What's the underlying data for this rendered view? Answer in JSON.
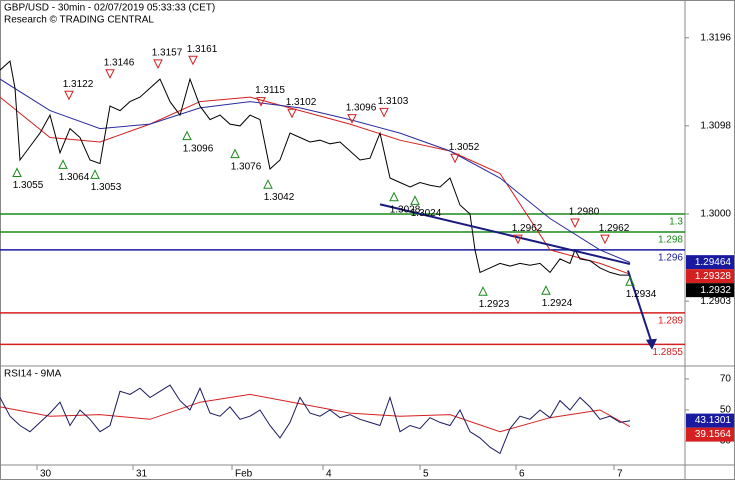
{
  "chart_data": [
    {
      "type": "price",
      "title": "GBP/USD - 30min - 02/07/2019 05:33:33 (CET)",
      "subtitle": "Research © TRADING CENTRAL",
      "xlim": [
        0,
        342.5
      ],
      "xticks": [
        {
          "value": 18.5,
          "label": "30"
        },
        {
          "value": 66.5,
          "label": "31"
        },
        {
          "value": 116,
          "label": "Feb"
        },
        {
          "value": 161.5,
          "label": "4"
        },
        {
          "value": 210,
          "label": "5"
        },
        {
          "value": 258,
          "label": "6"
        },
        {
          "value": 307,
          "label": "7"
        }
      ],
      "ylim": [
        1.2832,
        1.3238
      ],
      "yticks": [
        1.3196,
        1.3098,
        {
          "value": 1.3,
          "label": "1.3000"
        },
        1.2903
      ],
      "x": [
        0,
        5,
        7.5,
        10,
        15,
        20,
        25,
        30,
        35,
        40,
        45,
        50,
        55,
        60,
        65,
        70,
        75,
        80,
        85,
        90,
        95,
        100,
        105,
        110,
        115,
        120,
        125,
        130,
        135,
        140,
        145,
        150,
        155,
        160,
        165,
        170,
        175,
        180,
        185,
        190,
        195,
        200,
        205,
        210,
        215,
        220,
        225,
        230,
        235,
        237.5,
        240,
        245,
        250,
        255,
        260,
        265,
        270,
        275,
        280,
        285,
        287.5,
        290,
        295,
        300,
        305,
        310,
        315
      ],
      "series": [
        {
          "color": "#000000",
          "values": [
            1.316,
            1.317,
            1.314,
            1.306,
            1.3075,
            1.309,
            1.311,
            1.3068,
            1.3095,
            1.3085,
            1.306,
            1.3056,
            1.312,
            1.3115,
            1.3125,
            1.313,
            1.314,
            1.315,
            1.3125,
            1.311,
            1.315,
            1.312,
            1.3105,
            1.311,
            1.31,
            1.3098,
            1.311,
            1.3105,
            1.305,
            1.306,
            1.309,
            1.3085,
            1.308,
            1.3082,
            1.3078,
            1.308,
            1.307,
            1.306,
            1.3062,
            1.309,
            1.304,
            1.3035,
            1.303,
            1.3035,
            1.3032,
            1.303,
            1.304,
            1.301,
            1.3,
            1.296,
            1.2935,
            1.294,
            1.2945,
            1.2942,
            1.2945,
            1.2943,
            1.2945,
            1.2935,
            1.295,
            1.2945,
            1.296,
            1.295,
            1.2948,
            1.294,
            1.2935,
            1.2932,
            1.2932
          ]
        }
      ],
      "ma_x": [
        0,
        25,
        50,
        75,
        100,
        125,
        150,
        175,
        200,
        225,
        250,
        275,
        300,
        315
      ],
      "ma_series": [
        {
          "color": "#d42020",
          "values": [
            1.313,
            1.3085,
            1.308,
            1.31,
            1.3125,
            1.313,
            1.3115,
            1.31,
            1.3082,
            1.307,
            1.3045,
            1.296,
            1.2945,
            1.2933
          ]
        },
        {
          "color": "#2a2aa0",
          "values": [
            1.315,
            1.3115,
            1.3095,
            1.31,
            1.3118,
            1.3125,
            1.3118,
            1.3105,
            1.309,
            1.307,
            1.304,
            1.2995,
            1.296,
            1.2946
          ]
        }
      ],
      "levels": [
        {
          "value": 1.3,
          "color": "#1a8a1a"
        },
        {
          "value": 1.298,
          "color": "#1a8a1a"
        },
        {
          "value": 1.296,
          "color": "#1a1aa0"
        },
        {
          "value": 1.289,
          "color": "#d42020"
        },
        {
          "value": 1.2855,
          "color": "#d42020"
        }
      ],
      "trendline": {
        "x": [
          190,
          315
        ],
        "y": [
          1.30107,
          1.29443
        ],
        "color": "#1a1a80"
      },
      "arrow": {
        "x": [
          314,
          326
        ],
        "y": [
          1.2937,
          1.2849
        ],
        "color": "#1a1a80"
      },
      "annotations": [
        {
          "x": 8.5,
          "label": 1.3055,
          "dir": "up"
        },
        {
          "x": 34.5,
          "label": 1.3122,
          "dir": "down"
        },
        {
          "x": 31.5,
          "label": 1.3064,
          "dir": "up"
        },
        {
          "x": 47.5,
          "label": 1.3053,
          "dir": "up"
        },
        {
          "x": 55,
          "label": 1.3146,
          "dir": "down"
        },
        {
          "x": 79,
          "label": 1.3157,
          "dir": "down"
        },
        {
          "x": 96.5,
          "label": 1.3161,
          "dir": "down"
        },
        {
          "x": 93.5,
          "label": 1.3096,
          "dir": "up"
        },
        {
          "x": 117.5,
          "label": 1.3076,
          "dir": "up"
        },
        {
          "x": 130.5,
          "label": 1.3115,
          "dir": "down"
        },
        {
          "x": 134,
          "label": 1.3042,
          "dir": "up"
        },
        {
          "x": 146,
          "label": 1.3102,
          "dir": "down"
        },
        {
          "x": 176,
          "label": 1.3096,
          "dir": "down"
        },
        {
          "x": 192,
          "label": 1.3103,
          "dir": "down"
        },
        {
          "x": 197,
          "label": 1.3028,
          "dir": "up"
        },
        {
          "x": 207.5,
          "label": 1.3024,
          "dir": "up"
        },
        {
          "x": 227.5,
          "label": 1.3052,
          "dir": "down"
        },
        {
          "x": 241.5,
          "label": 1.2923,
          "dir": "up"
        },
        {
          "x": 259,
          "label": 1.2962,
          "dir": "down"
        },
        {
          "x": 273,
          "label": 1.2924,
          "dir": "up"
        },
        {
          "x": 287.5,
          "label": {
            "value": 1.298,
            "label": "1.2980"
          },
          "dir": "down"
        },
        {
          "x": 302.5,
          "label": 1.2962,
          "dir": "down"
        },
        {
          "x": 315,
          "label": 1.2934,
          "dir": "up"
        }
      ],
      "last_values": [
        {
          "value": 1.29464,
          "color": "#1a1aa0"
        },
        {
          "value": 1.29328,
          "color": "#d42020"
        },
        {
          "value": 1.2932,
          "color": "#000000"
        }
      ]
    },
    {
      "type": "rsi",
      "title": "RSI14 - 9MA",
      "xlim": [
        0,
        342.5
      ],
      "ylim": [
        14.5,
        77.7
      ],
      "yticks": [
        70,
        50,
        30
      ],
      "x": [
        0,
        5,
        10,
        15,
        20,
        25,
        30,
        35,
        40,
        45,
        50,
        55,
        60,
        65,
        70,
        75,
        80,
        85,
        90,
        95,
        100,
        105,
        110,
        115,
        120,
        125,
        130,
        135,
        140,
        145,
        150,
        155,
        160,
        165,
        170,
        175,
        180,
        185,
        190,
        195,
        200,
        205,
        210,
        215,
        220,
        225,
        230,
        235,
        240,
        245,
        250,
        255,
        260,
        265,
        270,
        275,
        280,
        285,
        290,
        295,
        300,
        305,
        310,
        315
      ],
      "series": [
        {
          "color": "#1a1a60",
          "values": [
            58,
            46,
            40,
            36,
            42,
            48,
            55,
            40,
            50,
            44,
            36,
            40,
            62,
            60,
            64,
            58,
            62,
            66,
            56,
            50,
            64,
            48,
            46,
            52,
            44,
            46,
            50,
            40,
            32,
            42,
            58,
            48,
            46,
            50,
            45,
            47,
            44,
            42,
            40,
            58,
            36,
            40,
            38,
            45,
            42,
            40,
            50,
            36,
            32,
            26,
            22,
            38,
            46,
            44,
            50,
            45,
            56,
            50,
            58,
            52,
            44,
            46,
            42,
            43
          ]
        }
      ],
      "ma_x": [
        0,
        25,
        50,
        75,
        100,
        125,
        150,
        175,
        200,
        225,
        250,
        275,
        300,
        315
      ],
      "ma_series": [
        {
          "color": "#d42020",
          "values": [
            52,
            46,
            47,
            44,
            55,
            60,
            54,
            48,
            46,
            47,
            36,
            45,
            50,
            39.2
          ]
        }
      ],
      "last_values": [
        {
          "value": 43.1301,
          "color": "#1a1aa0"
        },
        {
          "value": 39.1564,
          "color": "#d42020"
        }
      ]
    }
  ]
}
